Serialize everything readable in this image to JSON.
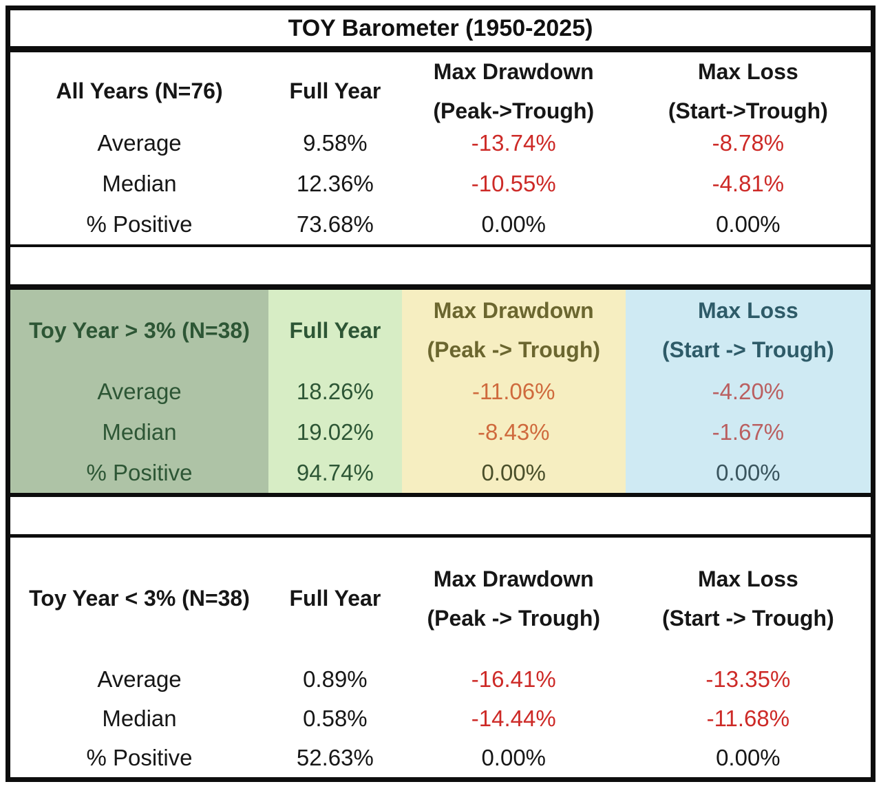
{
  "title": "TOY Barometer (1950-2025)",
  "colors": {
    "border": "#0d0d0d",
    "negative_red": "#cd2a27",
    "sage_bg": "#aec3a6",
    "light_green_bg": "#d7edc5",
    "yellow_bg": "#f6eec1",
    "blue_bg": "#cfeaf3",
    "dark_green_text": "#2d5635",
    "olive_header_text": "#6b662f",
    "olive_dark_text": "#4a4f2a",
    "teal_header_text": "#2e5b68",
    "teal_dark_text": "#3a555e",
    "orange_negative": "#cf6a3d",
    "muted_red_negative": "#ba5f60"
  },
  "sections": [
    {
      "label": "All Years (N=76)",
      "columns": [
        {
          "line1": "Full Year",
          "line2": ""
        },
        {
          "line1": "Max Drawdown",
          "line2": "(Peak->Trough)"
        },
        {
          "line1": "Max Loss",
          "line2": "(Start->Trough)"
        }
      ],
      "rows": [
        {
          "label": "Average",
          "values": [
            "9.58%",
            "-13.74%",
            "-8.78%"
          ]
        },
        {
          "label": "Median",
          "values": [
            "12.36%",
            "-10.55%",
            "-4.81%"
          ]
        },
        {
          "label": "% Positive",
          "values": [
            "73.68%",
            "0.00%",
            "0.00%"
          ]
        }
      ]
    },
    {
      "label": "Toy Year > 3% (N=38)",
      "columns": [
        {
          "line1": "Full Year",
          "line2": ""
        },
        {
          "line1": "Max Drawdown",
          "line2": "(Peak -> Trough)"
        },
        {
          "line1": "Max Loss",
          "line2": "(Start -> Trough)"
        }
      ],
      "rows": [
        {
          "label": "Average",
          "values": [
            "18.26%",
            "-11.06%",
            "-4.20%"
          ]
        },
        {
          "label": "Median",
          "values": [
            "19.02%",
            "-8.43%",
            "-1.67%"
          ]
        },
        {
          "label": "% Positive",
          "values": [
            "94.74%",
            "0.00%",
            "0.00%"
          ]
        }
      ]
    },
    {
      "label": "Toy Year < 3% (N=38)",
      "columns": [
        {
          "line1": "Full Year",
          "line2": ""
        },
        {
          "line1": "Max Drawdown",
          "line2": "(Peak -> Trough)"
        },
        {
          "line1": "Max Loss",
          "line2": "(Start -> Trough)"
        }
      ],
      "rows": [
        {
          "label": "Average",
          "values": [
            "0.89%",
            "-16.41%",
            "-13.35%"
          ]
        },
        {
          "label": "Median",
          "values": [
            "0.58%",
            "-14.44%",
            "-11.68%"
          ]
        },
        {
          "label": "% Positive",
          "values": [
            "52.63%",
            "0.00%",
            "0.00%"
          ]
        }
      ]
    }
  ],
  "chart_data": {
    "type": "table",
    "title": "TOY Barometer (1950-2025)",
    "units": "percent",
    "column_headers": [
      "",
      "Full Year",
      "Max Drawdown (Peak->Trough)",
      "Max Loss (Start->Trough)"
    ],
    "groups": [
      {
        "name": "All Years (N=76)",
        "rows": [
          [
            "Average",
            9.58,
            -13.74,
            -8.78
          ],
          [
            "Median",
            12.36,
            -10.55,
            -4.81
          ],
          [
            "% Positive",
            73.68,
            0.0,
            0.0
          ]
        ]
      },
      {
        "name": "Toy Year > 3% (N=38)",
        "rows": [
          [
            "Average",
            18.26,
            -11.06,
            -4.2
          ],
          [
            "Median",
            19.02,
            -8.43,
            -1.67
          ],
          [
            "% Positive",
            94.74,
            0.0,
            0.0
          ]
        ]
      },
      {
        "name": "Toy Year < 3% (N=38)",
        "rows": [
          [
            "Average",
            0.89,
            -16.41,
            -13.35
          ],
          [
            "Median",
            0.58,
            -14.44,
            -11.68
          ],
          [
            "% Positive",
            52.63,
            0.0,
            0.0
          ]
        ]
      }
    ]
  }
}
